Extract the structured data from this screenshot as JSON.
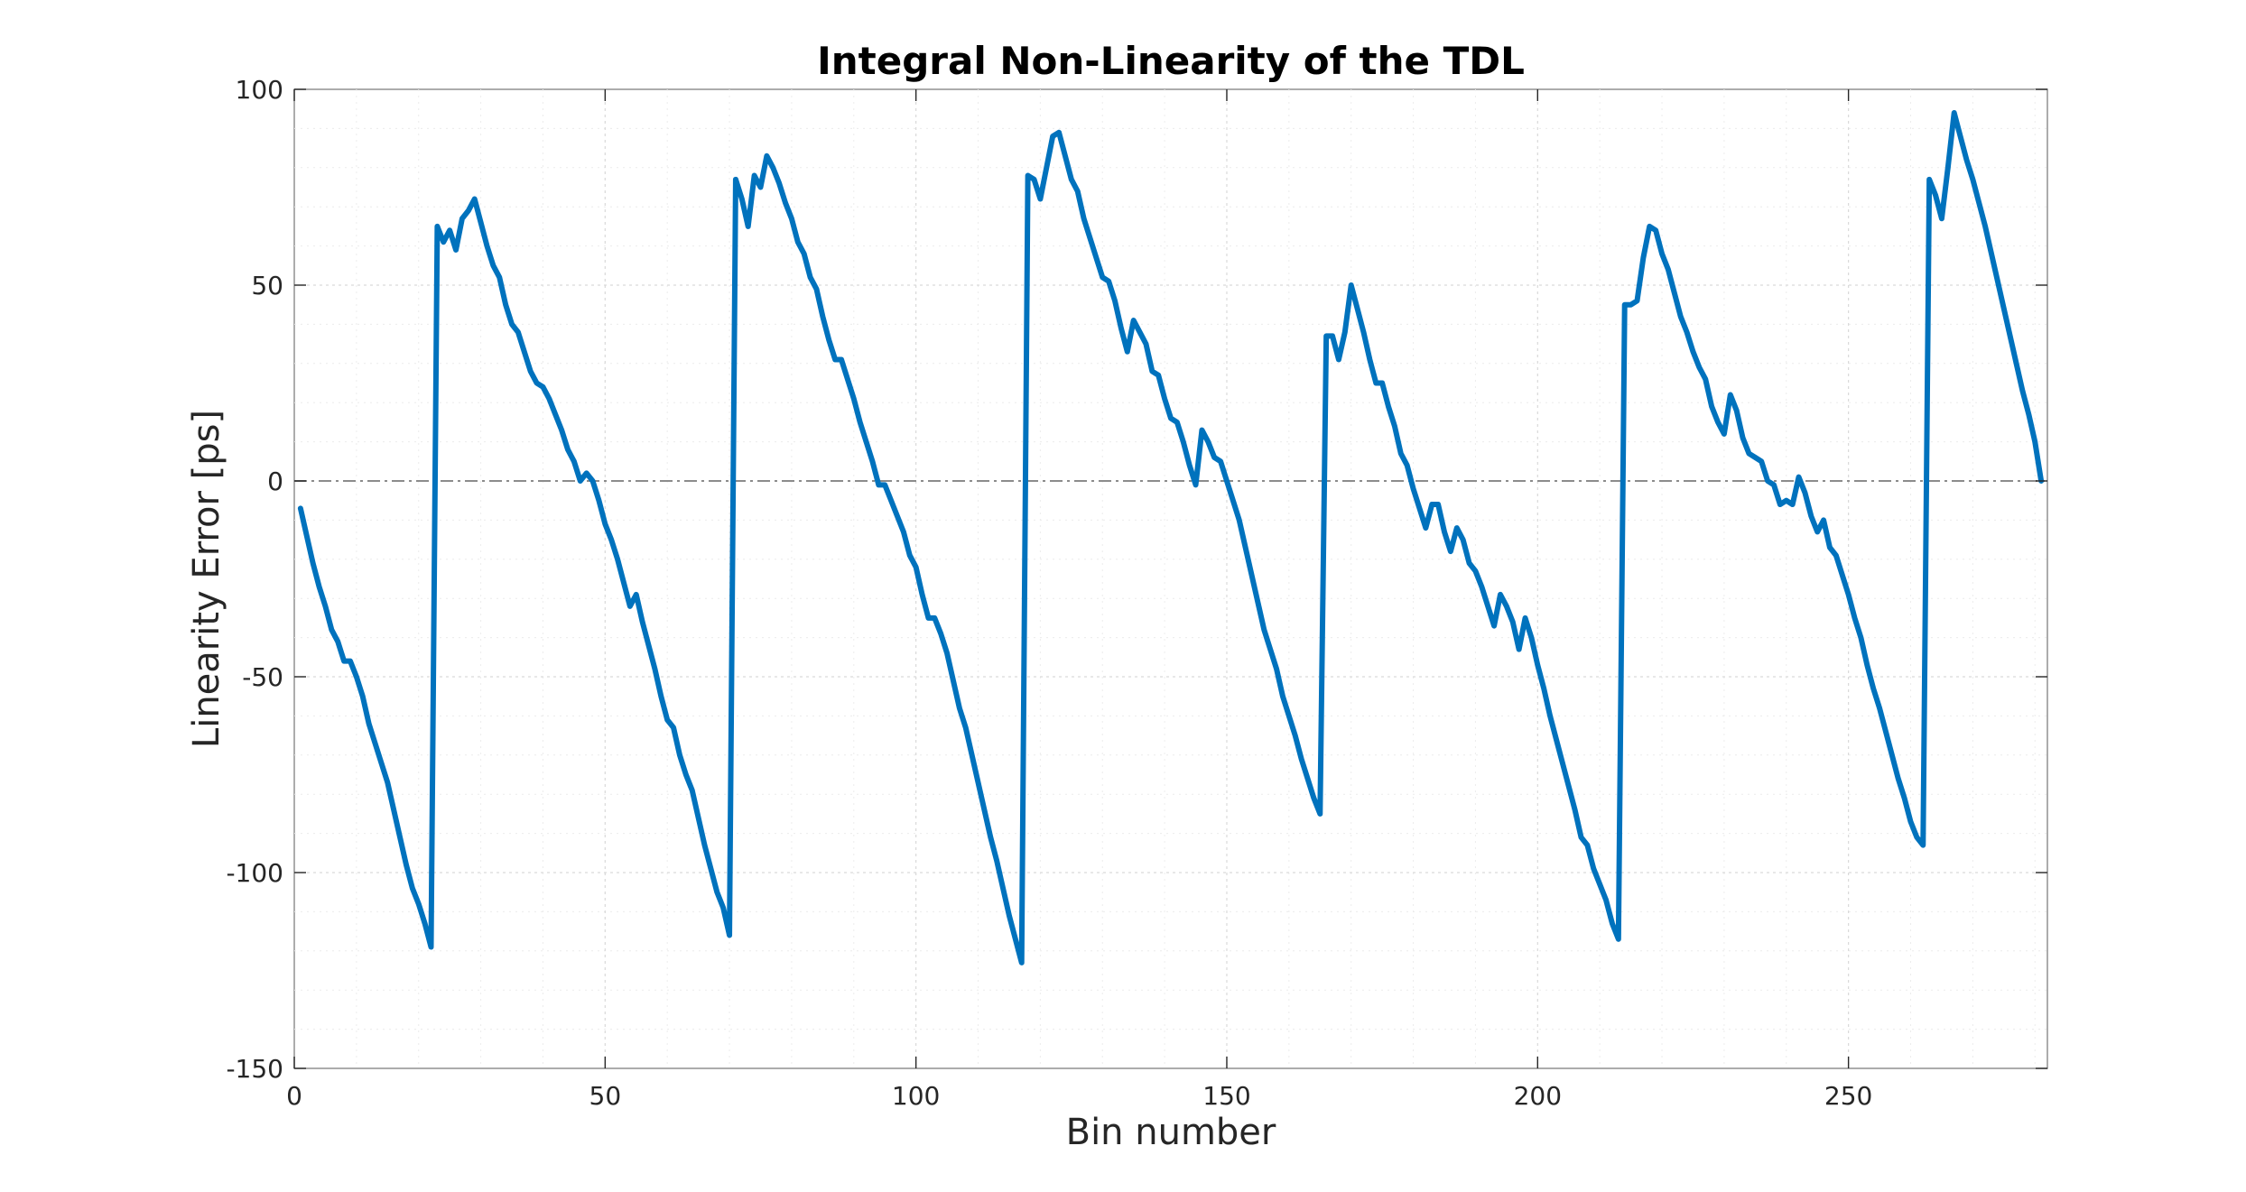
{
  "chart_data": {
    "type": "line",
    "title": "Integral Non-Linearity of the TDL",
    "xlabel": "Bin number",
    "ylabel": "Linearity Error [ps]",
    "xlim": [
      0,
      282
    ],
    "ylim": [
      -150,
      100
    ],
    "xticks": [
      0,
      50,
      100,
      150,
      200,
      250
    ],
    "yticks": [
      -150,
      -100,
      -50,
      0,
      50,
      100
    ],
    "xtick_labels": [
      "0",
      "50",
      "100",
      "150",
      "200",
      "250"
    ],
    "ytick_labels": [
      "-150",
      "-100",
      "-50",
      "0",
      "50",
      "100"
    ],
    "grid": true,
    "minor_grid": true,
    "reference_line": {
      "y": 0,
      "style": "dash-dot"
    },
    "colors": {
      "series": "#0072BD",
      "reference_line": "#8c8c8c"
    },
    "series": [
      {
        "points": [
          [
            1,
            -7
          ],
          [
            2,
            -14
          ],
          [
            3,
            -21
          ],
          [
            4,
            -27
          ],
          [
            5,
            -32
          ],
          [
            6,
            -38
          ],
          [
            7,
            -41
          ],
          [
            8,
            -46
          ],
          [
            9,
            -46
          ],
          [
            10,
            -50
          ],
          [
            11,
            -55
          ],
          [
            12,
            -62
          ],
          [
            13,
            -67
          ],
          [
            14,
            -72
          ],
          [
            15,
            -77
          ],
          [
            16,
            -84
          ],
          [
            17,
            -91
          ],
          [
            18,
            -98
          ],
          [
            19,
            -104
          ],
          [
            20,
            -108
          ],
          [
            21,
            -113
          ],
          [
            22,
            -119
          ],
          [
            23,
            65
          ],
          [
            24,
            61
          ],
          [
            25,
            64
          ],
          [
            26,
            59
          ],
          [
            27,
            67
          ],
          [
            28,
            69
          ],
          [
            29,
            72
          ],
          [
            30,
            66
          ],
          [
            31,
            60
          ],
          [
            32,
            55
          ],
          [
            33,
            52
          ],
          [
            34,
            45
          ],
          [
            35,
            40
          ],
          [
            36,
            38
          ],
          [
            37,
            33
          ],
          [
            38,
            28
          ],
          [
            39,
            25
          ],
          [
            40,
            24
          ],
          [
            41,
            21
          ],
          [
            42,
            17
          ],
          [
            43,
            13
          ],
          [
            44,
            8
          ],
          [
            45,
            5
          ],
          [
            46,
            0
          ],
          [
            47,
            2
          ],
          [
            48,
            0
          ],
          [
            49,
            -5
          ],
          [
            50,
            -11
          ],
          [
            51,
            -15
          ],
          [
            52,
            -20
          ],
          [
            53,
            -26
          ],
          [
            54,
            -32
          ],
          [
            55,
            -29
          ],
          [
            56,
            -36
          ],
          [
            57,
            -42
          ],
          [
            58,
            -48
          ],
          [
            59,
            -55
          ],
          [
            60,
            -61
          ],
          [
            61,
            -63
          ],
          [
            62,
            -70
          ],
          [
            63,
            -75
          ],
          [
            64,
            -79
          ],
          [
            65,
            -86
          ],
          [
            66,
            -93
          ],
          [
            67,
            -99
          ],
          [
            68,
            -105
          ],
          [
            69,
            -109
          ],
          [
            70,
            -116
          ],
          [
            71,
            77
          ],
          [
            72,
            72
          ],
          [
            73,
            65
          ],
          [
            74,
            78
          ],
          [
            75,
            75
          ],
          [
            76,
            83
          ],
          [
            77,
            80
          ],
          [
            78,
            76
          ],
          [
            79,
            71
          ],
          [
            80,
            67
          ],
          [
            81,
            61
          ],
          [
            82,
            58
          ],
          [
            83,
            52
          ],
          [
            84,
            49
          ],
          [
            85,
            42
          ],
          [
            86,
            36
          ],
          [
            87,
            31
          ],
          [
            88,
            31
          ],
          [
            89,
            26
          ],
          [
            90,
            21
          ],
          [
            91,
            15
          ],
          [
            92,
            10
          ],
          [
            93,
            5
          ],
          [
            94,
            -1
          ],
          [
            95,
            -1
          ],
          [
            96,
            -5
          ],
          [
            97,
            -9
          ],
          [
            98,
            -13
          ],
          [
            99,
            -19
          ],
          [
            100,
            -22
          ],
          [
            101,
            -29
          ],
          [
            102,
            -35
          ],
          [
            103,
            -35
          ],
          [
            104,
            -39
          ],
          [
            105,
            -44
          ],
          [
            106,
            -51
          ],
          [
            107,
            -58
          ],
          [
            108,
            -63
          ],
          [
            109,
            -70
          ],
          [
            110,
            -77
          ],
          [
            111,
            -84
          ],
          [
            112,
            -91
          ],
          [
            113,
            -97
          ],
          [
            114,
            -104
          ],
          [
            115,
            -111
          ],
          [
            116,
            -117
          ],
          [
            117,
            -123
          ],
          [
            118,
            78
          ],
          [
            119,
            77
          ],
          [
            120,
            72
          ],
          [
            121,
            80
          ],
          [
            122,
            88
          ],
          [
            123,
            89
          ],
          [
            124,
            83
          ],
          [
            125,
            77
          ],
          [
            126,
            74
          ],
          [
            127,
            67
          ],
          [
            128,
            62
          ],
          [
            129,
            57
          ],
          [
            130,
            52
          ],
          [
            131,
            51
          ],
          [
            132,
            46
          ],
          [
            133,
            39
          ],
          [
            134,
            33
          ],
          [
            135,
            41
          ],
          [
            136,
            38
          ],
          [
            137,
            35
          ],
          [
            138,
            28
          ],
          [
            139,
            27
          ],
          [
            140,
            21
          ],
          [
            141,
            16
          ],
          [
            142,
            15
          ],
          [
            143,
            10
          ],
          [
            144,
            4
          ],
          [
            145,
            -1
          ],
          [
            146,
            13
          ],
          [
            147,
            10
          ],
          [
            148,
            6
          ],
          [
            149,
            5
          ],
          [
            150,
            0
          ],
          [
            151,
            -5
          ],
          [
            152,
            -10
          ],
          [
            153,
            -17
          ],
          [
            154,
            -24
          ],
          [
            155,
            -31
          ],
          [
            156,
            -38
          ],
          [
            157,
            -43
          ],
          [
            158,
            -48
          ],
          [
            159,
            -55
          ],
          [
            160,
            -60
          ],
          [
            161,
            -65
          ],
          [
            162,
            -71
          ],
          [
            163,
            -76
          ],
          [
            164,
            -81
          ],
          [
            165,
            -85
          ],
          [
            166,
            37
          ],
          [
            167,
            37
          ],
          [
            168,
            31
          ],
          [
            169,
            38
          ],
          [
            170,
            50
          ],
          [
            171,
            44
          ],
          [
            172,
            38
          ],
          [
            173,
            31
          ],
          [
            174,
            25
          ],
          [
            175,
            25
          ],
          [
            176,
            19
          ],
          [
            177,
            14
          ],
          [
            178,
            7
          ],
          [
            179,
            4
          ],
          [
            180,
            -2
          ],
          [
            181,
            -7
          ],
          [
            182,
            -12
          ],
          [
            183,
            -6
          ],
          [
            184,
            -6
          ],
          [
            185,
            -13
          ],
          [
            186,
            -18
          ],
          [
            187,
            -12
          ],
          [
            188,
            -15
          ],
          [
            189,
            -21
          ],
          [
            190,
            -23
          ],
          [
            191,
            -27
          ],
          [
            192,
            -32
          ],
          [
            193,
            -37
          ],
          [
            194,
            -29
          ],
          [
            195,
            -32
          ],
          [
            196,
            -36
          ],
          [
            197,
            -43
          ],
          [
            198,
            -35
          ],
          [
            199,
            -40
          ],
          [
            200,
            -47
          ],
          [
            201,
            -53
          ],
          [
            202,
            -60
          ],
          [
            203,
            -66
          ],
          [
            204,
            -72
          ],
          [
            205,
            -78
          ],
          [
            206,
            -84
          ],
          [
            207,
            -91
          ],
          [
            208,
            -93
          ],
          [
            209,
            -99
          ],
          [
            210,
            -103
          ],
          [
            211,
            -107
          ],
          [
            212,
            -113
          ],
          [
            213,
            -117
          ],
          [
            214,
            45
          ],
          [
            215,
            45
          ],
          [
            216,
            46
          ],
          [
            217,
            57
          ],
          [
            218,
            65
          ],
          [
            219,
            64
          ],
          [
            220,
            58
          ],
          [
            221,
            54
          ],
          [
            222,
            48
          ],
          [
            223,
            42
          ],
          [
            224,
            38
          ],
          [
            225,
            33
          ],
          [
            226,
            29
          ],
          [
            227,
            26
          ],
          [
            228,
            19
          ],
          [
            229,
            15
          ],
          [
            230,
            12
          ],
          [
            231,
            22
          ],
          [
            232,
            18
          ],
          [
            233,
            11
          ],
          [
            234,
            7
          ],
          [
            235,
            6
          ],
          [
            236,
            5
          ],
          [
            237,
            0
          ],
          [
            238,
            -1
          ],
          [
            239,
            -6
          ],
          [
            240,
            -5
          ],
          [
            241,
            -6
          ],
          [
            242,
            1
          ],
          [
            243,
            -3
          ],
          [
            244,
            -9
          ],
          [
            245,
            -13
          ],
          [
            246,
            -10
          ],
          [
            247,
            -17
          ],
          [
            248,
            -19
          ],
          [
            249,
            -24
          ],
          [
            250,
            -29
          ],
          [
            251,
            -35
          ],
          [
            252,
            -40
          ],
          [
            253,
            -47
          ],
          [
            254,
            -53
          ],
          [
            255,
            -58
          ],
          [
            256,
            -64
          ],
          [
            257,
            -70
          ],
          [
            258,
            -76
          ],
          [
            259,
            -81
          ],
          [
            260,
            -87
          ],
          [
            261,
            -91
          ],
          [
            262,
            -93
          ],
          [
            263,
            77
          ],
          [
            264,
            73
          ],
          [
            265,
            67
          ],
          [
            266,
            80
          ],
          [
            267,
            94
          ],
          [
            268,
            88
          ],
          [
            269,
            82
          ],
          [
            270,
            77
          ],
          [
            271,
            71
          ],
          [
            272,
            65
          ],
          [
            273,
            58
          ],
          [
            274,
            51
          ],
          [
            275,
            44
          ],
          [
            276,
            37
          ],
          [
            277,
            30
          ],
          [
            278,
            23
          ],
          [
            279,
            17
          ],
          [
            280,
            10
          ],
          [
            281,
            0
          ]
        ]
      }
    ]
  }
}
